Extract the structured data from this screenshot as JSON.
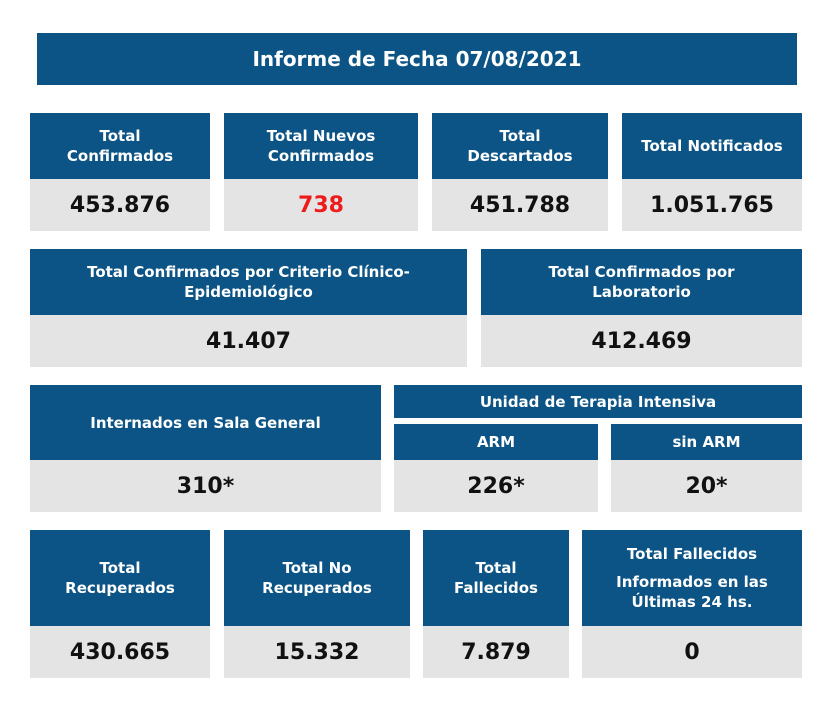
{
  "report": {
    "title": "Informe de Fecha 07/08/2021",
    "row1": [
      {
        "label_1": "Total",
        "label_2": "Confirmados",
        "value": "453.876"
      },
      {
        "label_1": "Total Nuevos",
        "label_2": "Confirmados",
        "value": "738",
        "highlight_color": "#ee1b1b"
      },
      {
        "label_1": "Total",
        "label_2": "Descartados",
        "value": "451.788"
      },
      {
        "label_1": "Total Notificados",
        "value": "1.051.765"
      }
    ],
    "row2": [
      {
        "label_1": "Total Confirmados por Criterio Clínico-",
        "label_2": "Epidemiológico",
        "value": "41.407"
      },
      {
        "label_1": "Total Confirmados por",
        "label_2": "Laboratorio",
        "value": "412.469"
      }
    ],
    "row3": {
      "sala_general": {
        "label": "Internados en Sala General",
        "value": "310*"
      },
      "uti": {
        "label": "Unidad de Terapia Intensiva",
        "arm": {
          "label": "ARM",
          "value": "226*"
        },
        "sin_arm": {
          "label": "sin ARM",
          "value": "20*"
        }
      }
    },
    "row4": [
      {
        "label_1": "Total",
        "label_2": "Recuperados",
        "value": "430.665"
      },
      {
        "label_1": "Total No",
        "label_2": "Recuperados",
        "value": "15.332"
      },
      {
        "label_1": "Total",
        "label_2": "Fallecidos",
        "value": "7.879"
      },
      {
        "label_1": "Total Fallecidos",
        "label_2": "Informados en las",
        "label_3": "Últimas 24 hs.",
        "value": "0"
      }
    ],
    "colors": {
      "header_bg": "#0c5485",
      "value_bg": "#e4e4e4",
      "text": "#111111"
    }
  }
}
